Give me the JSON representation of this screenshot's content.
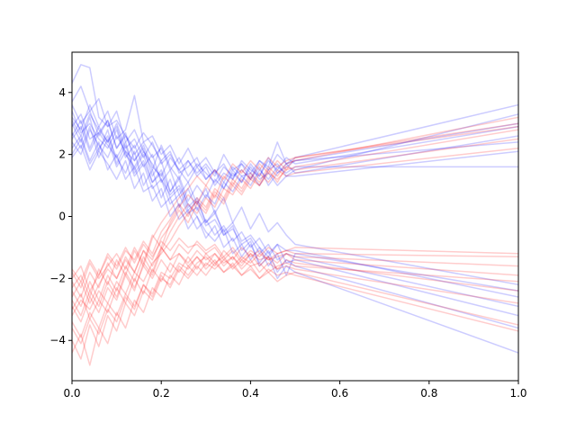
{
  "chart_data": {
    "type": "line",
    "title": "",
    "xlabel": "",
    "ylabel": "",
    "xlim": [
      0,
      1
    ],
    "ylim": [
      -5.3,
      5.3
    ],
    "grid": false,
    "legend": "none",
    "x_ticks": [
      "0.0",
      "0.2",
      "0.4",
      "0.6",
      "0.8",
      "1.0"
    ],
    "y_ticks": [
      "−4",
      "−2",
      "0",
      "2",
      "4"
    ],
    "x_tick_values": [
      0,
      0.2,
      0.4,
      0.6,
      0.8,
      1.0
    ],
    "y_tick_values": [
      -4,
      -2,
      0,
      2,
      4
    ],
    "colors": {
      "blue": "#0000ff",
      "red": "#ff0000",
      "line_opacity": 0.2
    },
    "x": [
      0,
      0.02,
      0.04,
      0.06,
      0.08,
      0.1,
      0.12,
      0.14,
      0.16,
      0.18,
      0.2,
      0.22,
      0.24,
      0.26,
      0.28,
      0.3,
      0.32,
      0.34,
      0.36,
      0.38,
      0.4,
      0.42,
      0.44,
      0.46,
      0.48,
      0.5,
      1.0
    ],
    "series": [
      {
        "color": "blue",
        "values": [
          4.3,
          4.9,
          4.8,
          3.2,
          2.9,
          3.4,
          2.4,
          2.8,
          2.1,
          1.5,
          2.3,
          1.6,
          1.2,
          1.8,
          1.4,
          1.7,
          1.3,
          2.0,
          1.5,
          1.7,
          1.2,
          1.8,
          1.6,
          2.4,
          1.7,
          1.9,
          3.6
        ]
      },
      {
        "color": "blue",
        "values": [
          3.7,
          4.2,
          3.4,
          3.8,
          2.9,
          3.1,
          2.6,
          2.2,
          2.7,
          2.3,
          1.8,
          2.1,
          1.4,
          1.6,
          1.9,
          1.2,
          1.5,
          1.1,
          1.6,
          1.3,
          1.4,
          1.0,
          1.5,
          1.7,
          1.3,
          1.5,
          3.3
        ]
      },
      {
        "color": "blue",
        "values": [
          3.2,
          2.8,
          3.6,
          2.9,
          3.4,
          2.5,
          2.8,
          3.9,
          2.4,
          2.6,
          2.0,
          2.3,
          1.7,
          2.2,
          1.6,
          1.9,
          1.4,
          1.7,
          1.2,
          1.8,
          1.5,
          1.3,
          1.9,
          1.4,
          1.6,
          1.8,
          3.0
        ]
      },
      {
        "color": "blue",
        "values": [
          2.9,
          3.3,
          2.5,
          2.7,
          3.1,
          2.2,
          2.6,
          2.0,
          2.4,
          1.9,
          2.2,
          1.5,
          1.9,
          1.3,
          1.7,
          1.4,
          1.1,
          1.6,
          1.3,
          1.5,
          1.2,
          1.6,
          1.0,
          1.4,
          1.7,
          1.4,
          2.6
        ]
      },
      {
        "color": "blue",
        "values": [
          2.4,
          2.0,
          2.8,
          2.3,
          1.9,
          2.6,
          2.1,
          1.8,
          2.3,
          1.6,
          1.3,
          1.9,
          1.5,
          1.1,
          1.6,
          1.2,
          1.5,
          0.9,
          1.4,
          1.1,
          1.6,
          1.2,
          1.4,
          1.0,
          1.3,
          1.3,
          2.1
        ]
      },
      {
        "color": "blue",
        "values": [
          2.0,
          2.5,
          1.7,
          2.2,
          2.6,
          1.9,
          1.4,
          2.1,
          1.0,
          1.5,
          0.6,
          1.2,
          0.3,
          0.9,
          0.2,
          0.7,
          0.4,
          1.1,
          0.8,
          1.3,
          1.0,
          1.5,
          1.2,
          1.6,
          1.4,
          1.6,
          1.6
        ]
      },
      {
        "color": "blue",
        "values": [
          3.0,
          2.4,
          3.2,
          2.1,
          2.8,
          1.7,
          2.3,
          1.4,
          1.8,
          1.1,
          1.5,
          0.8,
          1.3,
          0.5,
          1.0,
          0.6,
          1.2,
          0.9,
          1.5,
          1.1,
          1.7,
          1.3,
          1.8,
          1.5,
          1.9,
          1.7,
          2.9
        ]
      },
      {
        "color": "blue",
        "values": [
          2.6,
          3.1,
          2.2,
          2.9,
          2.4,
          3.0,
          2.2,
          2.5,
          1.9,
          2.4,
          1.7,
          2.0,
          1.5,
          1.8,
          1.3,
          1.6,
          1.0,
          1.4,
          1.2,
          1.7,
          1.4,
          1.8,
          1.5,
          2.0,
          1.7,
          1.8,
          2.4
        ]
      },
      {
        "color": "blue",
        "values": [
          3.4,
          2.7,
          3.0,
          2.5,
          2.2,
          2.8,
          1.9,
          2.3,
          1.6,
          2.0,
          1.1,
          1.5,
          0.7,
          1.1,
          0.4,
          0.9,
          0.1,
          0.6,
          -0.2,
          0.3,
          -0.4,
          0.1,
          -0.5,
          -0.2,
          -0.6,
          -0.9,
          -2.2
        ]
      },
      {
        "color": "blue",
        "values": [
          2.2,
          2.6,
          1.8,
          2.4,
          1.5,
          2.0,
          1.2,
          1.6,
          0.8,
          1.0,
          0.3,
          0.6,
          -0.1,
          0.2,
          -0.4,
          -0.1,
          -0.6,
          -0.3,
          -0.8,
          -0.5,
          -1.0,
          -0.7,
          -1.2,
          -0.9,
          -1.1,
          -1.1,
          -2.6
        ]
      },
      {
        "color": "blue",
        "values": [
          2.7,
          2.2,
          2.9,
          1.9,
          2.5,
          1.6,
          2.1,
          1.3,
          1.7,
          0.9,
          1.2,
          0.4,
          0.7,
          0.1,
          0.3,
          -0.3,
          -0.1,
          -0.6,
          -0.4,
          -0.9,
          -0.7,
          -1.2,
          -0.9,
          -1.4,
          -1.2,
          -1.3,
          -2.9
        ]
      },
      {
        "color": "blue",
        "values": [
          3.6,
          3.0,
          3.4,
          2.6,
          3.1,
          2.2,
          2.7,
          1.8,
          2.2,
          1.3,
          1.8,
          0.8,
          1.2,
          0.3,
          0.6,
          -0.2,
          0.1,
          -0.5,
          -0.2,
          -0.8,
          -0.6,
          -1.0,
          -1.3,
          -0.9,
          -1.5,
          -1.4,
          -3.2
        ]
      },
      {
        "color": "blue",
        "values": [
          1.9,
          2.3,
          1.5,
          2.1,
          1.7,
          1.2,
          1.8,
          0.9,
          1.4,
          0.5,
          0.9,
          0.0,
          0.4,
          -0.4,
          0.0,
          -0.7,
          -0.3,
          -1.0,
          -0.7,
          -1.3,
          -0.9,
          -1.5,
          -1.1,
          -1.8,
          -1.4,
          -1.6,
          -3.6
        ]
      },
      {
        "color": "blue",
        "values": [
          2.5,
          2.9,
          2.1,
          2.7,
          2.3,
          1.9,
          2.4,
          1.5,
          2.0,
          1.1,
          1.4,
          0.6,
          0.9,
          0.2,
          0.5,
          -0.2,
          0.2,
          -0.6,
          -0.3,
          -1.1,
          -0.8,
          -1.6,
          -1.3,
          -2.0,
          -1.6,
          -1.8,
          -4.4
        ]
      },
      {
        "color": "blue",
        "values": [
          3.1,
          2.6,
          3.3,
          2.8,
          2.4,
          2.9,
          2.0,
          1.6,
          2.1,
          1.7,
          1.2,
          0.7,
          1.0,
          0.4,
          0.0,
          -0.5,
          -0.8,
          -0.4,
          -1.2,
          -0.9,
          -1.4,
          -1.0,
          -1.6,
          -1.2,
          -1.9,
          -1.2,
          -2.4
        ]
      },
      {
        "color": "red",
        "values": [
          -2.0,
          -1.6,
          -2.4,
          -1.9,
          -1.3,
          -1.7,
          -1.1,
          -1.4,
          -0.8,
          -1.2,
          -0.5,
          -0.1,
          0.4,
          0.0,
          0.6,
          0.3,
          0.9,
          0.6,
          1.2,
          0.9,
          1.4,
          1.1,
          1.6,
          1.3,
          1.7,
          1.8,
          3.2
        ]
      },
      {
        "color": "red",
        "values": [
          -2.6,
          -2.1,
          -2.8,
          -2.2,
          -1.7,
          -2.0,
          -1.4,
          -1.8,
          -1.1,
          -1.4,
          -0.7,
          -0.3,
          0.2,
          -0.2,
          0.4,
          0.1,
          0.7,
          0.4,
          1.0,
          0.7,
          1.2,
          1.0,
          1.4,
          1.2,
          1.5,
          1.6,
          2.8
        ]
      },
      {
        "color": "red",
        "values": [
          -3.2,
          -2.7,
          -3.0,
          -2.4,
          -2.8,
          -2.1,
          -2.5,
          -1.8,
          -2.1,
          -1.5,
          -1.2,
          -0.8,
          -0.3,
          0.1,
          0.5,
          0.2,
          0.8,
          0.5,
          1.1,
          0.8,
          1.3,
          1.0,
          1.5,
          1.1,
          1.6,
          1.5,
          2.5
        ]
      },
      {
        "color": "red",
        "values": [
          -1.8,
          -2.3,
          -1.5,
          -2.0,
          -1.6,
          -1.2,
          -1.7,
          -1.0,
          -1.5,
          -0.6,
          -1.0,
          -0.2,
          0.3,
          0.7,
          0.4,
          1.0,
          0.6,
          1.3,
          1.0,
          1.5,
          1.2,
          1.7,
          1.4,
          1.8,
          1.5,
          1.9,
          3.0
        ]
      },
      {
        "color": "red",
        "values": [
          -2.9,
          -3.4,
          -2.6,
          -3.1,
          -2.3,
          -2.7,
          -1.9,
          -2.4,
          -1.5,
          -1.9,
          -1.1,
          -0.5,
          0.0,
          0.4,
          0.1,
          0.6,
          0.3,
          0.9,
          0.7,
          1.2,
          0.9,
          1.4,
          1.1,
          1.5,
          1.3,
          1.4,
          2.2
        ]
      },
      {
        "color": "red",
        "values": [
          -2.3,
          -1.9,
          -2.6,
          -1.7,
          -2.2,
          -1.4,
          -1.9,
          -1.1,
          -1.6,
          -0.7,
          -0.2,
          0.2,
          0.6,
          0.9,
          1.3,
          1.0,
          1.5,
          1.2,
          1.7,
          1.4,
          1.8,
          1.5,
          1.9,
          1.6,
          1.8,
          1.9,
          2.9
        ]
      },
      {
        "color": "red",
        "values": [
          -3.6,
          -4.1,
          -3.3,
          -3.8,
          -3.0,
          -3.4,
          -2.6,
          -3.0,
          -2.2,
          -2.5,
          -1.8,
          -2.0,
          -1.5,
          -1.7,
          -1.3,
          -1.6,
          -1.2,
          -1.5,
          -1.3,
          -1.6,
          -1.2,
          -1.4,
          -1.3,
          -1.5,
          -1.2,
          -1.3,
          -1.6
        ]
      },
      {
        "color": "red",
        "values": [
          -4.0,
          -4.6,
          -3.5,
          -4.2,
          -3.2,
          -3.7,
          -2.8,
          -3.2,
          -2.4,
          -2.7,
          -2.0,
          -2.2,
          -1.6,
          -1.9,
          -1.5,
          -1.3,
          -1.6,
          -1.1,
          -1.4,
          -1.0,
          -1.3,
          -1.1,
          -1.4,
          -1.2,
          -1.1,
          -1.2,
          -1.3
        ]
      },
      {
        "color": "red",
        "values": [
          -4.4,
          -3.8,
          -4.8,
          -3.6,
          -4.1,
          -3.1,
          -3.6,
          -2.7,
          -3.1,
          -2.3,
          -2.6,
          -1.9,
          -2.2,
          -1.6,
          -1.9,
          -1.5,
          -1.7,
          -1.4,
          -1.6,
          -1.3,
          -1.5,
          -1.2,
          -1.4,
          -1.3,
          -1.2,
          -1.4,
          -1.9
        ]
      },
      {
        "color": "red",
        "values": [
          -2.4,
          -2.9,
          -2.1,
          -2.7,
          -1.9,
          -2.4,
          -1.6,
          -2.1,
          -1.3,
          -1.8,
          -1.0,
          -1.4,
          -0.9,
          -1.2,
          -0.8,
          -1.1,
          -0.9,
          -1.3,
          -1.0,
          -1.4,
          -1.1,
          -1.3,
          -1.0,
          -1.2,
          -1.1,
          -1.0,
          -1.2
        ]
      },
      {
        "color": "red",
        "values": [
          -3.0,
          -2.5,
          -3.3,
          -2.7,
          -3.1,
          -2.3,
          -2.8,
          -2.0,
          -2.5,
          -1.7,
          -2.1,
          -1.5,
          -1.8,
          -1.3,
          -1.7,
          -1.2,
          -1.5,
          -1.3,
          -1.7,
          -1.4,
          -1.6,
          -1.5,
          -1.8,
          -1.6,
          -1.5,
          -1.6,
          -2.1
        ]
      },
      {
        "color": "red",
        "values": [
          -1.7,
          -2.1,
          -1.4,
          -1.9,
          -1.2,
          -1.6,
          -1.0,
          -1.5,
          -0.9,
          -1.3,
          -0.8,
          -1.1,
          -0.7,
          -1.0,
          -0.9,
          -1.2,
          -1.0,
          -1.4,
          -1.1,
          -1.5,
          -1.2,
          -1.6,
          -1.3,
          -1.7,
          -1.4,
          -1.5,
          -2.4
        ]
      },
      {
        "color": "red",
        "values": [
          -3.4,
          -3.9,
          -3.1,
          -3.6,
          -2.8,
          -3.2,
          -2.5,
          -2.9,
          -2.2,
          -2.6,
          -1.9,
          -2.3,
          -1.7,
          -2.0,
          -1.6,
          -1.9,
          -1.5,
          -1.8,
          -1.6,
          -1.9,
          -1.7,
          -2.0,
          -1.8,
          -2.1,
          -1.9,
          -1.8,
          -3.5
        ]
      },
      {
        "color": "red",
        "values": [
          -2.1,
          -2.6,
          -1.8,
          -2.3,
          -1.5,
          -2.0,
          -1.3,
          -1.8,
          -1.1,
          -1.6,
          -1.0,
          -1.4,
          -1.2,
          -1.6,
          -1.3,
          -1.7,
          -1.4,
          -1.8,
          -1.5,
          -1.9,
          -1.6,
          -2.0,
          -1.7,
          -1.9,
          -1.8,
          -1.9,
          -3.7
        ]
      },
      {
        "color": "red",
        "values": [
          -2.7,
          -3.2,
          -2.4,
          -2.9,
          -2.1,
          -2.6,
          -1.8,
          -2.3,
          -1.6,
          -2.0,
          -1.4,
          -1.8,
          -1.2,
          -1.5,
          -1.1,
          -1.4,
          -1.2,
          -1.6,
          -1.3,
          -1.7,
          -1.4,
          -1.8,
          -1.5,
          -1.7,
          -1.6,
          -1.7,
          -2.8
        ]
      }
    ]
  }
}
